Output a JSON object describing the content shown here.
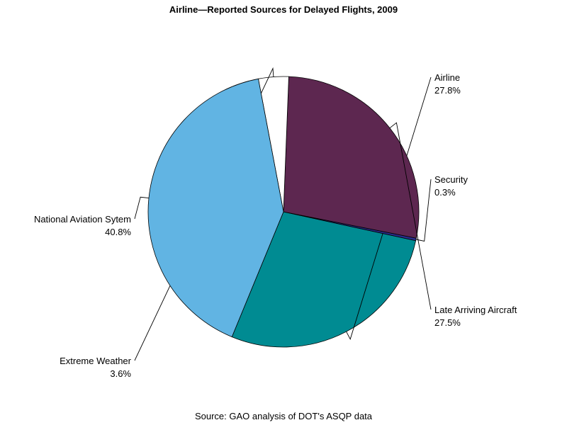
{
  "chart_data": {
    "type": "pie",
    "title": "Airline—Reported Sources for Delayed Flights, 2009",
    "source": "Source: GAO analysis of DOT's ASQP data",
    "slices": [
      {
        "label": "Airline",
        "value": 27.8,
        "display": "27.8%",
        "color": "#008b92"
      },
      {
        "label": "Security",
        "value": 0.3,
        "display": "0.3%",
        "color": "#2a2d8c"
      },
      {
        "label": "Late Arriving Aircraft",
        "value": 27.5,
        "display": "27.5%",
        "color": "#5d2750"
      },
      {
        "label": "Extreme Weather",
        "value": 3.6,
        "display": "3.6%",
        "color": "#ffffff"
      },
      {
        "label": "National Aviation Sytem",
        "value": 40.8,
        "display": "40.8%",
        "color": "#61b4e3"
      }
    ]
  }
}
